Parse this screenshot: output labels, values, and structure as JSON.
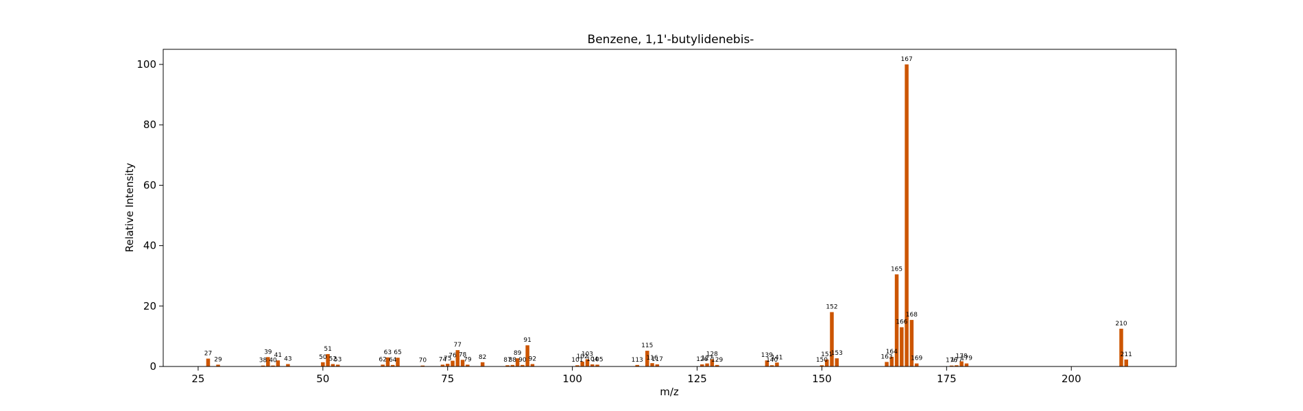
{
  "chart_data": {
    "type": "bar",
    "title": "Benzene, 1,1'-butylidenebis-",
    "xlabel": "m/z",
    "ylabel": "Relative Intensity",
    "xlim": [
      18,
      221
    ],
    "ylim": [
      0,
      105
    ],
    "xticks": [
      25,
      50,
      75,
      100,
      125,
      150,
      175,
      200
    ],
    "yticks": [
      0,
      20,
      40,
      60,
      80,
      100
    ],
    "grid": false,
    "bar_color": "#cc5500",
    "peaks": [
      {
        "mz": 27,
        "intensity": 2.6,
        "label": "27"
      },
      {
        "mz": 29,
        "intensity": 0.6,
        "label": "29"
      },
      {
        "mz": 38,
        "intensity": 0.3,
        "label": "38"
      },
      {
        "mz": 39,
        "intensity": 3.1,
        "label": "39"
      },
      {
        "mz": 40,
        "intensity": 0.3,
        "label": "40"
      },
      {
        "mz": 41,
        "intensity": 2.0,
        "label": "41"
      },
      {
        "mz": 43,
        "intensity": 0.8,
        "label": "43"
      },
      {
        "mz": 50,
        "intensity": 1.4,
        "label": "50"
      },
      {
        "mz": 51,
        "intensity": 4.1,
        "label": "51"
      },
      {
        "mz": 52,
        "intensity": 0.8,
        "label": "52"
      },
      {
        "mz": 53,
        "intensity": 0.6,
        "label": "53"
      },
      {
        "mz": 62,
        "intensity": 0.6,
        "label": "62"
      },
      {
        "mz": 63,
        "intensity": 3.0,
        "label": "63"
      },
      {
        "mz": 64,
        "intensity": 0.5,
        "label": "64"
      },
      {
        "mz": 65,
        "intensity": 2.9,
        "label": "65"
      },
      {
        "mz": 70,
        "intensity": 0.3,
        "label": "70"
      },
      {
        "mz": 74,
        "intensity": 0.6,
        "label": "74"
      },
      {
        "mz": 75,
        "intensity": 0.9,
        "label": "75"
      },
      {
        "mz": 76,
        "intensity": 1.9,
        "label": "76"
      },
      {
        "mz": 77,
        "intensity": 5.4,
        "label": "77"
      },
      {
        "mz": 78,
        "intensity": 2.2,
        "label": "78"
      },
      {
        "mz": 79,
        "intensity": 0.6,
        "label": "79"
      },
      {
        "mz": 82,
        "intensity": 1.4,
        "label": "82"
      },
      {
        "mz": 87,
        "intensity": 0.4,
        "label": "87"
      },
      {
        "mz": 88,
        "intensity": 0.5,
        "label": "88"
      },
      {
        "mz": 89,
        "intensity": 2.7,
        "label": "89"
      },
      {
        "mz": 90,
        "intensity": 0.5,
        "label": "90"
      },
      {
        "mz": 91,
        "intensity": 7.0,
        "label": "91"
      },
      {
        "mz": 92,
        "intensity": 0.8,
        "label": "92"
      },
      {
        "mz": 101,
        "intensity": 0.4,
        "label": "101"
      },
      {
        "mz": 102,
        "intensity": 1.6,
        "label": "102"
      },
      {
        "mz": 103,
        "intensity": 2.4,
        "label": "103"
      },
      {
        "mz": 104,
        "intensity": 0.7,
        "label": "104"
      },
      {
        "mz": 105,
        "intensity": 0.6,
        "label": "105"
      },
      {
        "mz": 113,
        "intensity": 0.5,
        "label": "113"
      },
      {
        "mz": 115,
        "intensity": 5.2,
        "label": "115"
      },
      {
        "mz": 116,
        "intensity": 1.1,
        "label": "116"
      },
      {
        "mz": 117,
        "intensity": 0.7,
        "label": "117"
      },
      {
        "mz": 126,
        "intensity": 0.7,
        "label": "126"
      },
      {
        "mz": 127,
        "intensity": 1.0,
        "label": "127"
      },
      {
        "mz": 128,
        "intensity": 2.4,
        "label": "128"
      },
      {
        "mz": 129,
        "intensity": 0.5,
        "label": "129"
      },
      {
        "mz": 139,
        "intensity": 2.0,
        "label": "139"
      },
      {
        "mz": 140,
        "intensity": 0.4,
        "label": "140"
      },
      {
        "mz": 141,
        "intensity": 1.3,
        "label": "141"
      },
      {
        "mz": 150,
        "intensity": 0.4,
        "label": "150"
      },
      {
        "mz": 151,
        "intensity": 2.3,
        "label": "151"
      },
      {
        "mz": 152,
        "intensity": 18.0,
        "label": "152"
      },
      {
        "mz": 153,
        "intensity": 2.7,
        "label": "153"
      },
      {
        "mz": 163,
        "intensity": 1.5,
        "label": "163"
      },
      {
        "mz": 164,
        "intensity": 3.2,
        "label": "164"
      },
      {
        "mz": 165,
        "intensity": 30.5,
        "label": "165"
      },
      {
        "mz": 166,
        "intensity": 13.0,
        "label": "166"
      },
      {
        "mz": 167,
        "intensity": 100.0,
        "label": "167"
      },
      {
        "mz": 168,
        "intensity": 15.4,
        "label": "168"
      },
      {
        "mz": 169,
        "intensity": 1.0,
        "label": "169"
      },
      {
        "mz": 176,
        "intensity": 0.3,
        "label": "176"
      },
      {
        "mz": 177,
        "intensity": 0.4,
        "label": "177"
      },
      {
        "mz": 178,
        "intensity": 1.7,
        "label": "178"
      },
      {
        "mz": 179,
        "intensity": 1.0,
        "label": "179"
      },
      {
        "mz": 210,
        "intensity": 12.5,
        "label": "210"
      },
      {
        "mz": 211,
        "intensity": 2.3,
        "label": "211"
      }
    ]
  }
}
